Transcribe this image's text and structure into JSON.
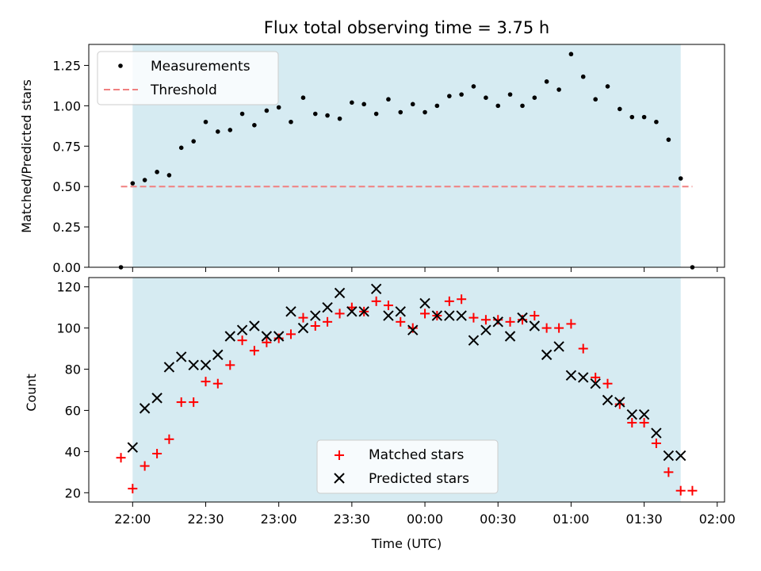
{
  "chart_data": [
    {
      "type": "scatter",
      "title": "Flux total observing time = 3.75 h",
      "xlabel": "",
      "ylabel": "Matched/Predicted stars",
      "x_unit": "hours since 22:00 UTC",
      "xlim": [
        -0.3,
        4.05
      ],
      "ylim": [
        0,
        1.38
      ],
      "yticks": [
        0.0,
        0.25,
        0.5,
        0.75,
        1.0,
        1.25
      ],
      "ytick_labels": [
        "0.00",
        "0.25",
        "0.50",
        "0.75",
        "1.00",
        "1.25"
      ],
      "shaded_interval": [
        0.0,
        3.75
      ],
      "legend_position": "upper-left",
      "threshold": {
        "name": "Threshold",
        "y": 0.5,
        "x_range": [
          -0.08,
          3.83
        ],
        "color": "#f08080"
      },
      "series": [
        {
          "name": "Measurements",
          "color": "#000000",
          "marker": "dot",
          "points": [
            [
              -0.08,
              0.0
            ],
            [
              0.0,
              0.52
            ],
            [
              0.083,
              0.54
            ],
            [
              0.167,
              0.59
            ],
            [
              0.25,
              0.57
            ],
            [
              0.333,
              0.74
            ],
            [
              0.417,
              0.78
            ],
            [
              0.5,
              0.9
            ],
            [
              0.583,
              0.84
            ],
            [
              0.667,
              0.85
            ],
            [
              0.75,
              0.95
            ],
            [
              0.833,
              0.88
            ],
            [
              0.917,
              0.97
            ],
            [
              1.0,
              0.99
            ],
            [
              1.083,
              0.9
            ],
            [
              1.167,
              1.05
            ],
            [
              1.25,
              0.95
            ],
            [
              1.333,
              0.94
            ],
            [
              1.417,
              0.92
            ],
            [
              1.5,
              1.02
            ],
            [
              1.583,
              1.01
            ],
            [
              1.667,
              0.95
            ],
            [
              1.75,
              1.04
            ],
            [
              1.833,
              0.96
            ],
            [
              1.917,
              1.01
            ],
            [
              2.0,
              0.96
            ],
            [
              2.083,
              1.0
            ],
            [
              2.167,
              1.06
            ],
            [
              2.25,
              1.07
            ],
            [
              2.333,
              1.12
            ],
            [
              2.417,
              1.05
            ],
            [
              2.5,
              1.0
            ],
            [
              2.583,
              1.07
            ],
            [
              2.667,
              1.0
            ],
            [
              2.75,
              1.05
            ],
            [
              2.833,
              1.15
            ],
            [
              2.917,
              1.1
            ],
            [
              3.0,
              1.32
            ],
            [
              3.083,
              1.18
            ],
            [
              3.167,
              1.04
            ],
            [
              3.25,
              1.12
            ],
            [
              3.333,
              0.98
            ],
            [
              3.417,
              0.93
            ],
            [
              3.5,
              0.93
            ],
            [
              3.583,
              0.9
            ],
            [
              3.667,
              0.79
            ],
            [
              3.75,
              0.55
            ],
            [
              3.83,
              0.0
            ]
          ]
        }
      ]
    },
    {
      "type": "scatter",
      "title": "",
      "xlabel": "Time (UTC)",
      "ylabel": "Count",
      "x_unit": "hours since 22:00 UTC",
      "xlim": [
        -0.3,
        4.05
      ],
      "ylim": [
        15.5,
        124.5
      ],
      "yticks": [
        20,
        40,
        60,
        80,
        100,
        120
      ],
      "ytick_labels": [
        "20",
        "40",
        "60",
        "80",
        "100",
        "120"
      ],
      "xticks": [
        0,
        0.5,
        1,
        1.5,
        2,
        2.5,
        3,
        3.5,
        4
      ],
      "xtick_labels": [
        "22:00",
        "22:30",
        "23:00",
        "23:30",
        "00:00",
        "00:30",
        "01:00",
        "01:30",
        "02:00"
      ],
      "shaded_interval": [
        0.0,
        3.75
      ],
      "legend_position": "lower-center",
      "series": [
        {
          "name": "Matched stars",
          "color": "#ff0000",
          "marker": "plus",
          "points": [
            [
              -0.08,
              37
            ],
            [
              0.0,
              22
            ],
            [
              0.083,
              33
            ],
            [
              0.167,
              39
            ],
            [
              0.25,
              46
            ],
            [
              0.333,
              64
            ],
            [
              0.417,
              64
            ],
            [
              0.5,
              74
            ],
            [
              0.583,
              73
            ],
            [
              0.667,
              82
            ],
            [
              0.75,
              94
            ],
            [
              0.833,
              89
            ],
            [
              0.917,
              93
            ],
            [
              1.0,
              95
            ],
            [
              1.083,
              97
            ],
            [
              1.167,
              105
            ],
            [
              1.25,
              101
            ],
            [
              1.333,
              103
            ],
            [
              1.417,
              107
            ],
            [
              1.5,
              110
            ],
            [
              1.583,
              108
            ],
            [
              1.667,
              113
            ],
            [
              1.75,
              111
            ],
            [
              1.833,
              103
            ],
            [
              1.917,
              100
            ],
            [
              2.0,
              107
            ],
            [
              2.083,
              106
            ],
            [
              2.167,
              113
            ],
            [
              2.25,
              114
            ],
            [
              2.333,
              105
            ],
            [
              2.417,
              104
            ],
            [
              2.5,
              104
            ],
            [
              2.583,
              103
            ],
            [
              2.667,
              104
            ],
            [
              2.75,
              106
            ],
            [
              2.833,
              100
            ],
            [
              2.917,
              100
            ],
            [
              3.0,
              102
            ],
            [
              3.083,
              90
            ],
            [
              3.167,
              76
            ],
            [
              3.25,
              73
            ],
            [
              3.333,
              63
            ],
            [
              3.417,
              54
            ],
            [
              3.5,
              54
            ],
            [
              3.583,
              44
            ],
            [
              3.667,
              30
            ],
            [
              3.75,
              21
            ],
            [
              3.83,
              21
            ]
          ]
        },
        {
          "name": "Predicted stars",
          "color": "#000000",
          "marker": "x",
          "points": [
            [
              0.0,
              42
            ],
            [
              0.083,
              61
            ],
            [
              0.167,
              66
            ],
            [
              0.25,
              81
            ],
            [
              0.333,
              86
            ],
            [
              0.417,
              82
            ],
            [
              0.5,
              82
            ],
            [
              0.583,
              87
            ],
            [
              0.667,
              96
            ],
            [
              0.75,
              99
            ],
            [
              0.833,
              101
            ],
            [
              0.917,
              96
            ],
            [
              1.0,
              96
            ],
            [
              1.083,
              108
            ],
            [
              1.167,
              100
            ],
            [
              1.25,
              106
            ],
            [
              1.333,
              110
            ],
            [
              1.417,
              117
            ],
            [
              1.5,
              108
            ],
            [
              1.583,
              108
            ],
            [
              1.667,
              119
            ],
            [
              1.75,
              106
            ],
            [
              1.833,
              108
            ],
            [
              1.917,
              99
            ],
            [
              2.0,
              112
            ],
            [
              2.083,
              106
            ],
            [
              2.167,
              106
            ],
            [
              2.25,
              106
            ],
            [
              2.333,
              94
            ],
            [
              2.417,
              99
            ],
            [
              2.5,
              103
            ],
            [
              2.583,
              96
            ],
            [
              2.667,
              105
            ],
            [
              2.75,
              101
            ],
            [
              2.833,
              87
            ],
            [
              2.917,
              91
            ],
            [
              3.0,
              77
            ],
            [
              3.083,
              76
            ],
            [
              3.167,
              73
            ],
            [
              3.25,
              65
            ],
            [
              3.333,
              64
            ],
            [
              3.417,
              58
            ],
            [
              3.5,
              58
            ],
            [
              3.583,
              49
            ],
            [
              3.667,
              38
            ],
            [
              3.75,
              38
            ]
          ]
        }
      ]
    }
  ]
}
